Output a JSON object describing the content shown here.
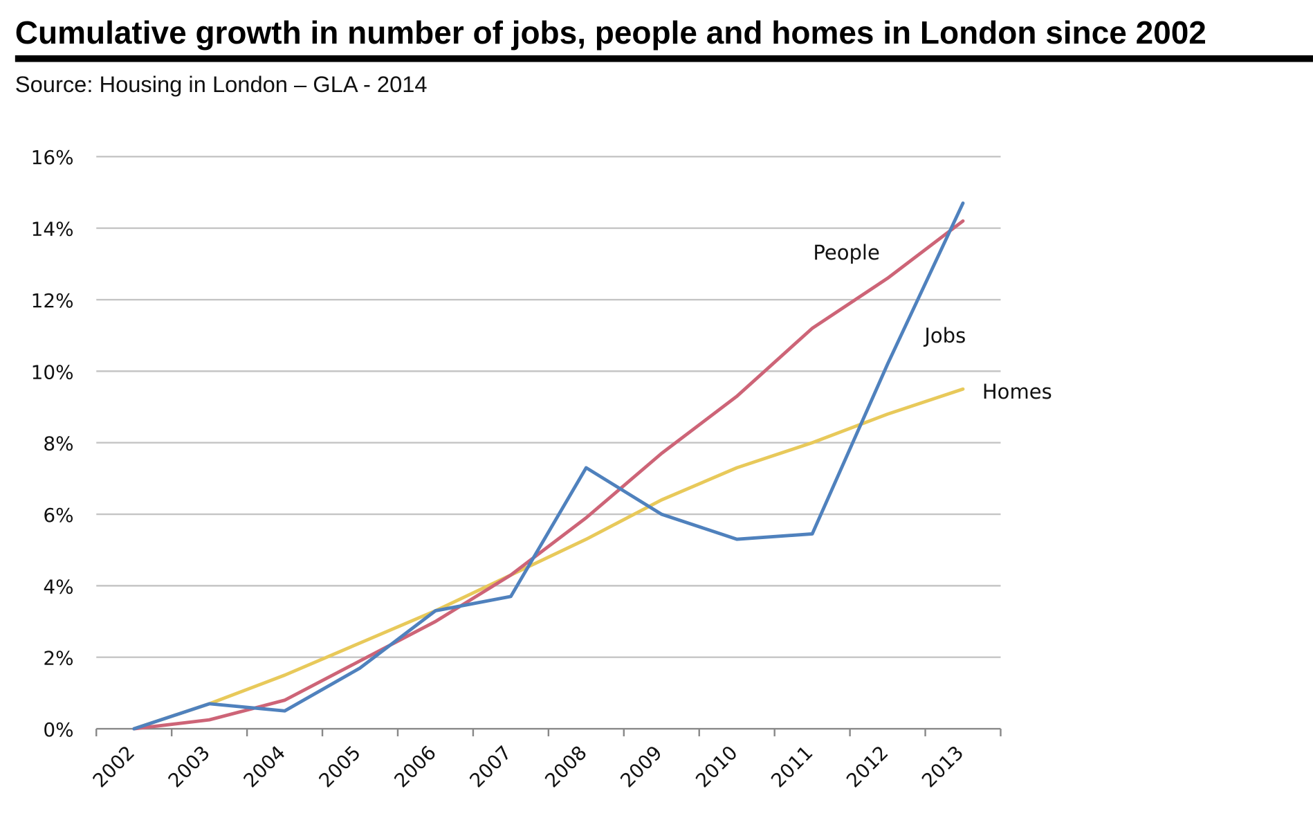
{
  "chart_data": {
    "type": "line",
    "title": "Cumulative growth in number of jobs, people and homes in London since 2002",
    "subtitle": "Source: Housing in London – GLA - 2014",
    "xlabel": "",
    "ylabel": "",
    "categories": [
      "2002",
      "2003",
      "2004",
      "2005",
      "2006",
      "2007",
      "2008",
      "2009",
      "2010",
      "2011",
      "2012",
      "2013"
    ],
    "ylim": [
      0,
      16
    ],
    "yticks": [
      0,
      2,
      4,
      6,
      8,
      10,
      12,
      14,
      16
    ],
    "ytick_labels": [
      "0%",
      "2%",
      "4%",
      "6%",
      "8%",
      "10%",
      "12%",
      "14%",
      "16%"
    ],
    "grid": true,
    "legend": "direct labels at line ends",
    "series": [
      {
        "name": "Jobs",
        "color": "#4f81bd",
        "values": [
          0,
          0.7,
          0.5,
          1.7,
          3.3,
          3.7,
          7.3,
          6.0,
          5.3,
          5.45,
          10.2,
          14.7
        ]
      },
      {
        "name": "People",
        "color": "#cd6477",
        "values": [
          0,
          0.25,
          0.8,
          1.9,
          3.0,
          4.3,
          5.9,
          7.7,
          9.3,
          11.2,
          12.6,
          14.2
        ]
      },
      {
        "name": "Homes",
        "color": "#e8c95a",
        "values": [
          0,
          0.7,
          1.5,
          2.4,
          3.3,
          4.3,
          5.3,
          6.4,
          7.3,
          8.0,
          8.8,
          9.5
        ]
      }
    ]
  }
}
